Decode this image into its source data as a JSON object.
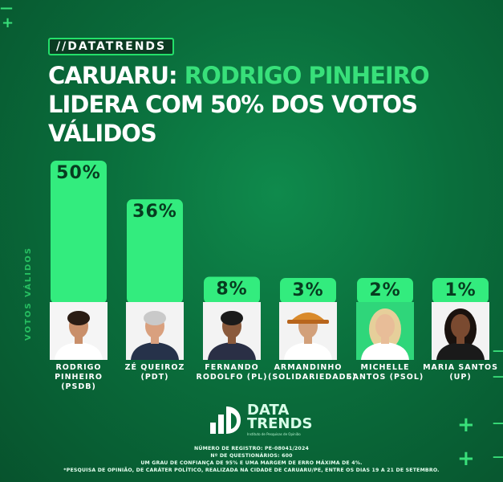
{
  "tag": "//DATATRENDS",
  "title": {
    "city": "CARUARU:",
    "highlight": "RODRIGO PINHEIRO",
    "line2": "LIDERA COM 50% DOS VOTOS",
    "line3": "VÁLIDOS"
  },
  "chart_data": {
    "type": "bar",
    "ylabel": "VOTOS VÁLIDOS",
    "ylim": [
      0,
      50
    ],
    "categories": [
      "RODRIGO\nPINHEIRO (PSDB)",
      "ZÉ QUEIROZ\n(PDT)",
      "FERNANDO\nRODOLFO (PL)",
      "ARMANDINHO\n(SOLIDARIEDADE)",
      "MICHELLE\nSANTOS (PSOL)",
      "MARIA SANTOS\n(UP)"
    ],
    "values": [
      50,
      36,
      8,
      3,
      2,
      1
    ],
    "labels": [
      "50%",
      "36%",
      "8%",
      "3%",
      "2%",
      "1%"
    ]
  },
  "photos": [
    {
      "icon": "candidate-rodrigo-photo",
      "bg": "#f5f5f5",
      "skin": "#c98f6a",
      "hair": "#2a1c14",
      "shirt": "#ffffff"
    },
    {
      "icon": "candidate-ze-photo",
      "bg": "#f3f3f3",
      "skin": "#d9a07e",
      "hair": "#c9c9c9",
      "shirt": "#26324a"
    },
    {
      "icon": "candidate-fernando-photo",
      "bg": "#f3f3f3",
      "skin": "#8a5a3c",
      "hair": "#1a1a1a",
      "shirt": "#2a2f45"
    },
    {
      "icon": "candidate-armandinho-photo",
      "bg": "#f3f3f3",
      "skin": "#d2a07a",
      "hair": "#d98a2b",
      "shirt": "#ffffff"
    },
    {
      "icon": "candidate-michelle-photo",
      "bg": "#2fd67a",
      "skin": "#e8bd98",
      "hair": "#e6cf9a",
      "shirt": "#ffffff"
    },
    {
      "icon": "candidate-maria-photo",
      "bg": "#f3f3f3",
      "skin": "#7a4a30",
      "hair": "#1a120e",
      "shirt": "#1a1a1a"
    }
  ],
  "logo": {
    "line1": "DATA",
    "line2": "TRENDS",
    "sub": "Instituto de Pesquisas de Opinião"
  },
  "footer": {
    "line1": "NÚMERO DE REGISTRO: PE-08041/2024",
    "line2": "Nº DE QUESTIONÁRIOS: 600",
    "line3": "UM GRAU DE CONFIANÇA DE 95% E UMA MARGEM DE ERRO MÁXIMA DE 4%.",
    "line4": "*PESQUISA DE OPINIÃO, DE CARÁTER POLÍTICO, REALIZADA NA CIDADE DE CARUARU/PE, ENTRE OS DIAS 19 A 21 DE SETEMBRO."
  },
  "colors": {
    "accent": "#33ec7e",
    "bg": "#0a6e3c",
    "bar_text": "#073c20"
  }
}
